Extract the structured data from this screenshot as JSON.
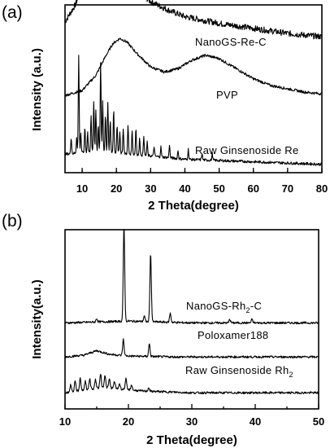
{
  "chart_data": [
    {
      "type": "line",
      "panel_label": "(a)",
      "xlabel": "2 Theta(degree)",
      "ylabel": "Intensity (a.u.)",
      "xlim": [
        5,
        80
      ],
      "xticks": [
        10,
        20,
        30,
        40,
        50,
        60,
        70,
        80
      ],
      "yticks": [],
      "grid": false,
      "series": [
        {
          "name": "NanoGS-Re-C",
          "offset": 0.78,
          "points": [
            [
              5,
              0.12
            ],
            [
              8,
              0.22
            ],
            [
              10,
              0.33
            ],
            [
              12,
              0.44
            ],
            [
              14,
              0.58
            ],
            [
              16,
              0.68
            ],
            [
              17,
              0.72
            ],
            [
              18,
              0.66
            ],
            [
              20,
              0.52
            ],
            [
              22,
              0.4
            ],
            [
              25,
              0.32
            ],
            [
              30,
              0.24
            ],
            [
              35,
              0.19
            ],
            [
              40,
              0.15
            ],
            [
              45,
              0.13
            ],
            [
              50,
              0.11
            ],
            [
              60,
              0.08
            ],
            [
              70,
              0.05
            ],
            [
              80,
              0.03
            ]
          ]
        },
        {
          "name": "PVP",
          "offset": 0.46,
          "points": [
            [
              5,
              0.0
            ],
            [
              10,
              0.03
            ],
            [
              14,
              0.12
            ],
            [
              17,
              0.24
            ],
            [
              19,
              0.31
            ],
            [
              21,
              0.34
            ],
            [
              23,
              0.32
            ],
            [
              26,
              0.25
            ],
            [
              30,
              0.17
            ],
            [
              34,
              0.14
            ],
            [
              38,
              0.16
            ],
            [
              42,
              0.21
            ],
            [
              46,
              0.24
            ],
            [
              50,
              0.22
            ],
            [
              55,
              0.16
            ],
            [
              60,
              0.1
            ],
            [
              65,
              0.06
            ],
            [
              70,
              0.04
            ],
            [
              75,
              0.02
            ],
            [
              80,
              0.01
            ]
          ]
        },
        {
          "name": "Raw Ginsenoside Re",
          "offset": 0.05,
          "peaks": [
            [
              6.8,
              0.1
            ],
            [
              8.4,
              0.1
            ],
            [
              9.0,
              0.58
            ],
            [
              9.6,
              0.12
            ],
            [
              10.8,
              0.15
            ],
            [
              11.6,
              0.12
            ],
            [
              12.6,
              0.22
            ],
            [
              13.4,
              0.3
            ],
            [
              14.0,
              0.25
            ],
            [
              14.7,
              0.16
            ],
            [
              15.4,
              0.53
            ],
            [
              16.0,
              0.3
            ],
            [
              16.8,
              0.22
            ],
            [
              17.5,
              0.3
            ],
            [
              18.2,
              0.19
            ],
            [
              19.2,
              0.26
            ],
            [
              20.2,
              0.17
            ],
            [
              21.0,
              0.13
            ],
            [
              22.0,
              0.15
            ],
            [
              23.4,
              0.17
            ],
            [
              24.6,
              0.14
            ],
            [
              25.7,
              0.16
            ],
            [
              26.8,
              0.1
            ],
            [
              28.0,
              0.12
            ],
            [
              29.0,
              0.08
            ],
            [
              31.0,
              0.06
            ],
            [
              33.0,
              0.06
            ],
            [
              35.5,
              0.08
            ],
            [
              38.0,
              0.05
            ],
            [
              41.0,
              0.06
            ],
            [
              45.0,
              0.04
            ],
            [
              48.0,
              0.04
            ]
          ],
          "baseline": [
            [
              5,
              0.06
            ],
            [
              15,
              0.08
            ],
            [
              25,
              0.06
            ],
            [
              40,
              0.03
            ],
            [
              80,
              0.0
            ]
          ]
        }
      ]
    },
    {
      "type": "line",
      "panel_label": "(b)",
      "xlabel": "2 Theta(degree)",
      "ylabel": "Intensity(a.u.)",
      "xlim": [
        10,
        50
      ],
      "xticks": [
        10,
        20,
        30,
        40,
        50
      ],
      "yticks": [],
      "grid": false,
      "series": [
        {
          "name": "NanoGS-Rh",
          "name_sub": "2",
          "name_suffix": "-C",
          "offset": 0.48,
          "peaks": [
            [
              15.0,
              0.02
            ],
            [
              19.3,
              0.53
            ],
            [
              22.5,
              0.03
            ],
            [
              23.5,
              0.38
            ],
            [
              26.6,
              0.05
            ],
            [
              36.0,
              0.02
            ],
            [
              39.5,
              0.02
            ]
          ],
          "baseline": [
            [
              10,
              0.0
            ],
            [
              20,
              0.01
            ],
            [
              30,
              0.0
            ],
            [
              50,
              0.0
            ]
          ]
        },
        {
          "name": "Poloxamer188",
          "offset": 0.29,
          "peaks": [
            [
              19.2,
              0.09
            ],
            [
              23.3,
              0.07
            ]
          ],
          "baseline": [
            [
              10,
              0.0
            ],
            [
              13,
              0.01
            ],
            [
              15,
              0.035
            ],
            [
              17,
              0.015
            ],
            [
              20,
              0.005
            ],
            [
              27,
              0.0
            ],
            [
              50,
              0.0
            ]
          ]
        },
        {
          "name": "Raw Ginsenoside Rh",
          "name_sub": "2",
          "name_suffix": "",
          "offset": 0.09,
          "peaks": [
            [
              10.9,
              0.04
            ],
            [
              11.6,
              0.06
            ],
            [
              12.4,
              0.07
            ],
            [
              13.2,
              0.05
            ],
            [
              13.9,
              0.06
            ],
            [
              14.8,
              0.05
            ],
            [
              15.6,
              0.08
            ],
            [
              16.3,
              0.07
            ],
            [
              17.0,
              0.05
            ],
            [
              17.8,
              0.04
            ],
            [
              18.6,
              0.03
            ],
            [
              19.6,
              0.06
            ],
            [
              20.5,
              0.03
            ],
            [
              23.2,
              0.02
            ]
          ],
          "baseline": [
            [
              10,
              0.0
            ],
            [
              16,
              0.03
            ],
            [
              22,
              0.01
            ],
            [
              30,
              0.0
            ],
            [
              50,
              0.0
            ]
          ]
        }
      ]
    }
  ]
}
